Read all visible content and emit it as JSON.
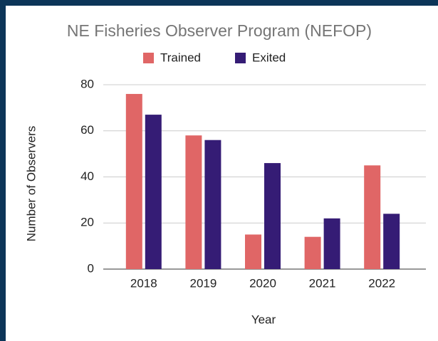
{
  "chart_data": {
    "type": "bar",
    "title": "NE Fisheries Observer Program (NEFOP)",
    "x_label": "Year",
    "y_label": "Number of Observers",
    "categories": [
      "2018",
      "2019",
      "2020",
      "2021",
      "2022"
    ],
    "series": [
      {
        "name": "Trained",
        "color": "#e06666",
        "values": [
          76,
          58,
          15,
          14,
          45
        ]
      },
      {
        "name": "Exited",
        "color": "#351c75",
        "values": [
          67,
          56,
          46,
          22,
          24
        ]
      }
    ],
    "ylim": [
      0,
      80
    ],
    "yticks": [
      0,
      20,
      40,
      60,
      80
    ],
    "grid": true,
    "legend": "top"
  }
}
